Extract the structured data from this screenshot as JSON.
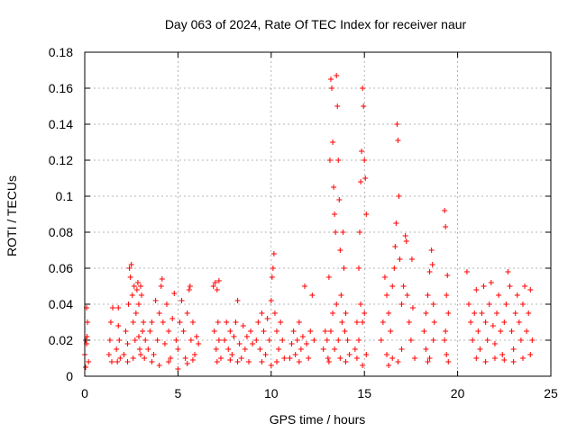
{
  "chart_data": {
    "type": "scatter",
    "title": "Day 063 of 2024, Rate Of TEC Index for receiver naur",
    "xlabel": "GPS time / hours",
    "ylabel": "ROTI / TECUs",
    "xlim": [
      0,
      25
    ],
    "ylim": [
      0,
      0.18
    ],
    "x_ticks": [
      0,
      5,
      10,
      15,
      20,
      25
    ],
    "x_tick_labels": [
      "0",
      "5",
      "10",
      "15",
      "20",
      "25"
    ],
    "y_ticks": [
      0,
      0.02,
      0.04,
      0.06,
      0.08,
      0.1,
      0.12,
      0.14,
      0.16,
      0.18
    ],
    "y_tick_labels": [
      "0",
      "0.02",
      "0.04",
      "0.06",
      "0.08",
      "0.1",
      "0.12",
      "0.14",
      "0.16",
      "0.18"
    ],
    "grid": true,
    "marker": "+",
    "color": "#ff0000",
    "series": [
      {
        "name": "ROTI",
        "points": [
          [
            0.0,
            0.012
          ],
          [
            0.05,
            0.02
          ],
          [
            0.1,
            0.018
          ],
          [
            0.15,
            0.03
          ],
          [
            0.2,
            0.008
          ],
          [
            0.1,
            0.038
          ],
          [
            0.05,
            0.005
          ],
          [
            0.12,
            0.022
          ],
          [
            1.3,
            0.012
          ],
          [
            1.4,
            0.03
          ],
          [
            1.45,
            0.008
          ],
          [
            1.5,
            0.038
          ],
          [
            1.35,
            0.02
          ],
          [
            1.7,
            0.015
          ],
          [
            1.8,
            0.028
          ],
          [
            1.9,
            0.01
          ],
          [
            1.85,
            0.02
          ],
          [
            1.75,
            0.008
          ],
          [
            1.8,
            0.038
          ],
          [
            2.1,
            0.012
          ],
          [
            2.2,
            0.025
          ],
          [
            2.3,
            0.018
          ],
          [
            2.35,
            0.04
          ],
          [
            2.4,
            0.06
          ],
          [
            2.45,
            0.055
          ],
          [
            2.5,
            0.062
          ],
          [
            2.55,
            0.045
          ],
          [
            2.6,
            0.03
          ],
          [
            2.65,
            0.05
          ],
          [
            2.7,
            0.02
          ],
          [
            2.75,
            0.035
          ],
          [
            2.8,
            0.048
          ],
          [
            2.85,
            0.052
          ],
          [
            2.9,
            0.04
          ],
          [
            2.95,
            0.015
          ],
          [
            3.0,
            0.05
          ],
          [
            3.05,
            0.045
          ],
          [
            3.1,
            0.025
          ],
          [
            3.15,
            0.03
          ],
          [
            3.2,
            0.01
          ],
          [
            3.25,
            0.02
          ],
          [
            2.3,
            0.008
          ],
          [
            2.6,
            0.01
          ],
          [
            2.9,
            0.022
          ],
          [
            3.0,
            0.012
          ],
          [
            3.4,
            0.015
          ],
          [
            3.5,
            0.025
          ],
          [
            3.6,
            0.03
          ],
          [
            3.7,
            0.012
          ],
          [
            3.8,
            0.042
          ],
          [
            3.9,
            0.02
          ],
          [
            4.0,
            0.035
          ],
          [
            4.1,
            0.05
          ],
          [
            4.15,
            0.054
          ],
          [
            4.2,
            0.03
          ],
          [
            4.3,
            0.018
          ],
          [
            4.4,
            0.04
          ],
          [
            4.5,
            0.025
          ],
          [
            4.6,
            0.01
          ],
          [
            4.7,
            0.032
          ],
          [
            4.8,
            0.046
          ],
          [
            4.9,
            0.02
          ],
          [
            5.0,
            0.015
          ],
          [
            5.1,
            0.03
          ],
          [
            5.2,
            0.042
          ],
          [
            5.3,
            0.025
          ],
          [
            5.4,
            0.01
          ],
          [
            5.5,
            0.035
          ],
          [
            5.6,
            0.048
          ],
          [
            5.65,
            0.05
          ],
          [
            5.7,
            0.02
          ],
          [
            5.8,
            0.03
          ],
          [
            5.9,
            0.012
          ],
          [
            6.0,
            0.022
          ],
          [
            6.1,
            0.018
          ],
          [
            3.6,
            0.008
          ],
          [
            4.0,
            0.006
          ],
          [
            4.5,
            0.008
          ],
          [
            5.0,
            0.004
          ],
          [
            5.5,
            0.007
          ],
          [
            5.8,
            0.009
          ],
          [
            6.9,
            0.05
          ],
          [
            7.0,
            0.052
          ],
          [
            7.1,
            0.048
          ],
          [
            7.2,
            0.053
          ],
          [
            6.95,
            0.025
          ],
          [
            7.05,
            0.015
          ],
          [
            7.15,
            0.03
          ],
          [
            7.2,
            0.02
          ],
          [
            7.3,
            0.01
          ],
          [
            7.1,
            0.008
          ],
          [
            7.5,
            0.02
          ],
          [
            7.6,
            0.03
          ],
          [
            7.7,
            0.015
          ],
          [
            7.8,
            0.025
          ],
          [
            7.9,
            0.012
          ],
          [
            8.0,
            0.022
          ],
          [
            8.1,
            0.03
          ],
          [
            8.2,
            0.042
          ],
          [
            8.3,
            0.018
          ],
          [
            8.4,
            0.01
          ],
          [
            8.5,
            0.028
          ],
          [
            8.6,
            0.015
          ],
          [
            8.7,
            0.022
          ],
          [
            8.8,
            0.008
          ],
          [
            8.9,
            0.025
          ],
          [
            9.0,
            0.018
          ],
          [
            8.2,
            0.008
          ],
          [
            7.8,
            0.009
          ],
          [
            9.2,
            0.02
          ],
          [
            9.3,
            0.03
          ],
          [
            9.4,
            0.015
          ],
          [
            9.5,
            0.035
          ],
          [
            9.6,
            0.025
          ],
          [
            9.7,
            0.012
          ],
          [
            9.8,
            0.032
          ],
          [
            9.9,
            0.02
          ],
          [
            10.0,
            0.042
          ],
          [
            10.05,
            0.055
          ],
          [
            10.1,
            0.06
          ],
          [
            10.15,
            0.068
          ],
          [
            10.2,
            0.035
          ],
          [
            10.3,
            0.025
          ],
          [
            10.4,
            0.015
          ],
          [
            10.5,
            0.03
          ],
          [
            10.6,
            0.02
          ],
          [
            10.7,
            0.01
          ],
          [
            9.5,
            0.008
          ],
          [
            10.0,
            0.006
          ],
          [
            10.3,
            0.008
          ],
          [
            11.0,
            0.01
          ],
          [
            11.1,
            0.018
          ],
          [
            11.2,
            0.025
          ],
          [
            11.3,
            0.012
          ],
          [
            11.4,
            0.02
          ],
          [
            11.5,
            0.03
          ],
          [
            11.6,
            0.015
          ],
          [
            11.7,
            0.022
          ],
          [
            11.8,
            0.05
          ],
          [
            11.9,
            0.018
          ],
          [
            12.0,
            0.01
          ],
          [
            12.1,
            0.025
          ],
          [
            12.2,
            0.045
          ],
          [
            12.3,
            0.02
          ],
          [
            11.5,
            0.008
          ],
          [
            12.8,
            0.015
          ],
          [
            12.9,
            0.025
          ],
          [
            13.0,
            0.02
          ],
          [
            13.05,
            0.01
          ],
          [
            13.1,
            0.055
          ],
          [
            13.15,
            0.12
          ],
          [
            13.2,
            0.165
          ],
          [
            13.25,
            0.16
          ],
          [
            13.3,
            0.13
          ],
          [
            13.35,
            0.105
          ],
          [
            13.4,
            0.09
          ],
          [
            13.45,
            0.08
          ],
          [
            13.5,
            0.167
          ],
          [
            13.55,
            0.15
          ],
          [
            13.6,
            0.12
          ],
          [
            13.65,
            0.098
          ],
          [
            13.7,
            0.07
          ],
          [
            13.75,
            0.045
          ],
          [
            13.8,
            0.03
          ],
          [
            13.85,
            0.08
          ],
          [
            13.9,
            0.06
          ],
          [
            13.95,
            0.025
          ],
          [
            14.0,
            0.035
          ],
          [
            14.1,
            0.02
          ],
          [
            14.2,
            0.012
          ],
          [
            13.3,
            0.035
          ],
          [
            13.5,
            0.04
          ],
          [
            13.6,
            0.02
          ],
          [
            13.2,
            0.025
          ],
          [
            13.4,
            0.015
          ],
          [
            13.7,
            0.01
          ],
          [
            14.0,
            0.008
          ],
          [
            13.1,
            0.008
          ],
          [
            14.5,
            0.015
          ],
          [
            14.6,
            0.03
          ],
          [
            14.7,
            0.06
          ],
          [
            14.75,
            0.08
          ],
          [
            14.8,
            0.108
          ],
          [
            14.85,
            0.125
          ],
          [
            14.9,
            0.16
          ],
          [
            14.95,
            0.15
          ],
          [
            15.0,
            0.12
          ],
          [
            15.05,
            0.11
          ],
          [
            15.1,
            0.09
          ],
          [
            14.8,
            0.04
          ],
          [
            14.9,
            0.03
          ],
          [
            15.0,
            0.035
          ],
          [
            14.7,
            0.02
          ],
          [
            14.6,
            0.01
          ],
          [
            15.1,
            0.012
          ],
          [
            14.9,
            0.006
          ],
          [
            15.9,
            0.02
          ],
          [
            16.0,
            0.03
          ],
          [
            16.1,
            0.055
          ],
          [
            16.2,
            0.045
          ],
          [
            16.3,
            0.035
          ],
          [
            16.4,
            0.025
          ],
          [
            16.5,
            0.05
          ],
          [
            16.6,
            0.06
          ],
          [
            16.65,
            0.072
          ],
          [
            16.7,
            0.085
          ],
          [
            16.75,
            0.14
          ],
          [
            16.8,
            0.131
          ],
          [
            16.85,
            0.1
          ],
          [
            16.9,
            0.065
          ],
          [
            17.0,
            0.04
          ],
          [
            17.1,
            0.05
          ],
          [
            17.2,
            0.078
          ],
          [
            17.25,
            0.075
          ],
          [
            17.3,
            0.045
          ],
          [
            17.4,
            0.03
          ],
          [
            17.5,
            0.02
          ],
          [
            17.55,
            0.065
          ],
          [
            17.6,
            0.038
          ],
          [
            17.7,
            0.01
          ],
          [
            16.2,
            0.012
          ],
          [
            16.5,
            0.01
          ],
          [
            16.8,
            0.008
          ],
          [
            17.0,
            0.015
          ],
          [
            16.3,
            0.006
          ],
          [
            18.2,
            0.025
          ],
          [
            18.3,
            0.035
          ],
          [
            18.4,
            0.045
          ],
          [
            18.5,
            0.058
          ],
          [
            18.6,
            0.07
          ],
          [
            18.65,
            0.062
          ],
          [
            18.7,
            0.04
          ],
          [
            18.75,
            0.03
          ],
          [
            18.3,
            0.015
          ],
          [
            18.5,
            0.01
          ],
          [
            18.7,
            0.02
          ],
          [
            18.4,
            0.008
          ],
          [
            19.3,
            0.092
          ],
          [
            19.35,
            0.083
          ],
          [
            19.4,
            0.045
          ],
          [
            19.45,
            0.056
          ],
          [
            19.5,
            0.035
          ],
          [
            19.3,
            0.02
          ],
          [
            19.4,
            0.012
          ],
          [
            19.5,
            0.008
          ],
          [
            19.35,
            0.025
          ],
          [
            20.5,
            0.058
          ],
          [
            20.6,
            0.04
          ],
          [
            20.7,
            0.03
          ],
          [
            20.8,
            0.02
          ],
          [
            20.9,
            0.035
          ],
          [
            21.0,
            0.048
          ],
          [
            21.1,
            0.025
          ],
          [
            21.2,
            0.015
          ],
          [
            21.3,
            0.035
          ],
          [
            21.4,
            0.05
          ],
          [
            21.5,
            0.03
          ],
          [
            21.6,
            0.02
          ],
          [
            21.7,
            0.04
          ],
          [
            21.8,
            0.052
          ],
          [
            21.9,
            0.028
          ],
          [
            22.0,
            0.018
          ],
          [
            22.1,
            0.035
          ],
          [
            22.2,
            0.045
          ],
          [
            22.3,
            0.025
          ],
          [
            22.4,
            0.012
          ],
          [
            22.5,
            0.03
          ],
          [
            22.6,
            0.04
          ],
          [
            22.7,
            0.058
          ],
          [
            22.8,
            0.05
          ],
          [
            22.9,
            0.025
          ],
          [
            23.0,
            0.015
          ],
          [
            23.1,
            0.035
          ],
          [
            23.2,
            0.045
          ],
          [
            23.3,
            0.03
          ],
          [
            23.4,
            0.02
          ],
          [
            23.5,
            0.04
          ],
          [
            23.6,
            0.05
          ],
          [
            23.7,
            0.025
          ],
          [
            23.8,
            0.035
          ],
          [
            23.9,
            0.048
          ],
          [
            24.0,
            0.02
          ],
          [
            21.0,
            0.01
          ],
          [
            21.5,
            0.008
          ],
          [
            22.0,
            0.01
          ],
          [
            22.5,
            0.009
          ],
          [
            23.0,
            0.008
          ],
          [
            23.5,
            0.01
          ],
          [
            23.9,
            0.012
          ]
        ]
      }
    ]
  }
}
